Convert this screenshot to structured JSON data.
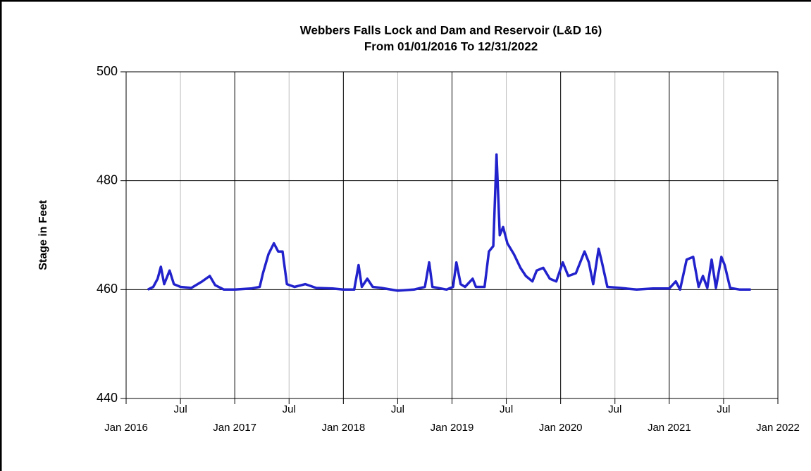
{
  "chart_data": {
    "type": "line",
    "title": "Webbers Falls Lock and Dam and Reservoir (L&D 16)",
    "subtitle": "From 01/01/2016 To 12/31/2022",
    "y_label": "Stage in Feet",
    "xlim": [
      2016,
      2022
    ],
    "xticks": [
      {
        "value": 2016,
        "label": "Jan 2016"
      },
      {
        "value": 2016.5,
        "label": "Jul"
      },
      {
        "value": 2017,
        "label": "Jan 2017"
      },
      {
        "value": 2017.5,
        "label": "Jul"
      },
      {
        "value": 2018,
        "label": "Jan 2018"
      },
      {
        "value": 2018.5,
        "label": "Jul"
      },
      {
        "value": 2019,
        "label": "Jan 2019"
      },
      {
        "value": 2019.5,
        "label": "Jul"
      },
      {
        "value": 2020,
        "label": "Jan 2020"
      },
      {
        "value": 2020.5,
        "label": "Jul"
      },
      {
        "value": 2021,
        "label": "Jan 2021"
      },
      {
        "value": 2021.5,
        "label": "Jul"
      },
      {
        "value": 2022,
        "label": "Jan 2022"
      }
    ],
    "ylim": [
      440,
      500
    ],
    "yticks": [
      440,
      460,
      480,
      500
    ],
    "grid": true,
    "series": [
      {
        "color": "#2222cc",
        "x": [
          2016.2,
          2016.25,
          2016.29,
          2016.32,
          2016.35,
          2016.4,
          2016.44,
          2016.5,
          2016.6,
          2016.7,
          2016.77,
          2016.82,
          2016.9,
          2017.0,
          2017.15,
          2017.23,
          2017.26,
          2017.31,
          2017.36,
          2017.4,
          2017.44,
          2017.48,
          2017.55,
          2017.65,
          2017.75,
          2017.9,
          2018.0,
          2018.1,
          2018.14,
          2018.17,
          2018.22,
          2018.27,
          2018.35,
          2018.5,
          2018.65,
          2018.75,
          2018.79,
          2018.82,
          2018.95,
          2019.01,
          2019.04,
          2019.08,
          2019.12,
          2019.19,
          2019.22,
          2019.3,
          2019.34,
          2019.38,
          2019.41,
          2019.44,
          2019.47,
          2019.51,
          2019.57,
          2019.63,
          2019.68,
          2019.74,
          2019.78,
          2019.84,
          2019.9,
          2019.96,
          2020.02,
          2020.07,
          2020.14,
          2020.22,
          2020.26,
          2020.3,
          2020.35,
          2020.38,
          2020.43,
          2020.55,
          2020.7,
          2020.85,
          2021.0,
          2021.06,
          2021.1,
          2021.16,
          2021.22,
          2021.27,
          2021.31,
          2021.35,
          2021.39,
          2021.43,
          2021.48,
          2021.51,
          2021.56,
          2021.65,
          2021.75
        ],
        "values": [
          460,
          460.5,
          462,
          464.2,
          461,
          463.5,
          461,
          460.5,
          460.3,
          461.5,
          462.5,
          460.8,
          460,
          460,
          460.2,
          460.5,
          463,
          466.5,
          468.5,
          467,
          467,
          461,
          460.5,
          461,
          460.3,
          460.2,
          460,
          460,
          464.5,
          460.5,
          462,
          460.5,
          460.3,
          459.8,
          460,
          460.5,
          465,
          460.5,
          460,
          460.5,
          465,
          461,
          460.5,
          462,
          460.5,
          460.5,
          467,
          468,
          484.8,
          470,
          471.5,
          468.5,
          466.5,
          464,
          462.5,
          461.5,
          463.5,
          464,
          462,
          461.5,
          465,
          462.5,
          463,
          467,
          465,
          461,
          467.5,
          465,
          460.5,
          460.3,
          460,
          460.2,
          460.2,
          461.5,
          460,
          465.5,
          466,
          460.5,
          462.5,
          460.3,
          465.5,
          460.3,
          466,
          464.5,
          460.3,
          460,
          460
        ]
      }
    ]
  }
}
